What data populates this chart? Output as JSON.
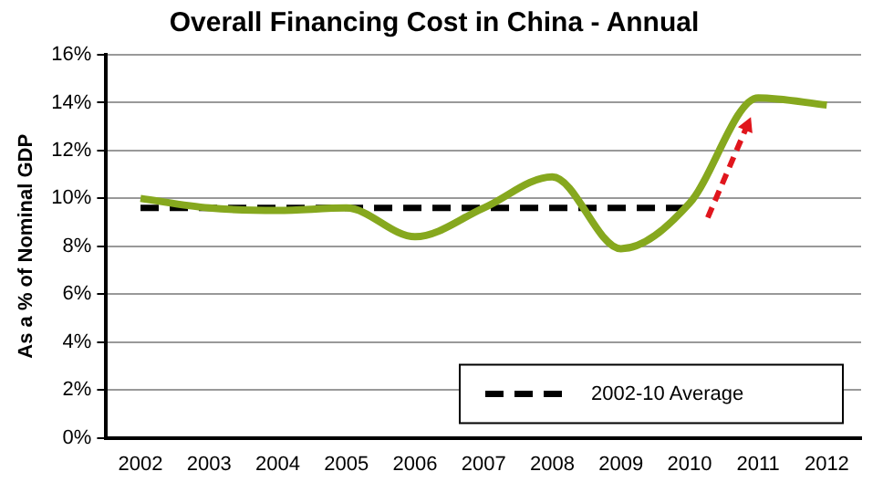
{
  "chart_data": {
    "type": "line",
    "title": "Overall Financing Cost in China - Annual",
    "ylabel": "As a % of Nominal GDP",
    "categories": [
      "2002",
      "2003",
      "2004",
      "2005",
      "2006",
      "2007",
      "2008",
      "2009",
      "2010",
      "2011",
      "2012"
    ],
    "series": [
      {
        "color": "#86a81e",
        "values": [
          10.0,
          9.6,
          9.5,
          9.6,
          8.4,
          9.6,
          10.9,
          7.9,
          9.8,
          14.2,
          13.9
        ]
      },
      {
        "name": "2002-10 Average",
        "color": "#000000",
        "line_style": "dashed",
        "values": [
          9.6,
          9.6,
          9.6,
          9.6,
          9.6,
          9.6,
          9.6,
          9.6,
          9.6,
          null,
          null
        ]
      }
    ],
    "ylim": [
      0,
      16
    ],
    "yticks": [
      {
        "value": 0,
        "label": "0%"
      },
      {
        "value": 2,
        "label": "2%"
      },
      {
        "value": 4,
        "label": "4%"
      },
      {
        "value": 6,
        "label": "6%"
      },
      {
        "value": 8,
        "label": "8%"
      },
      {
        "value": 10,
        "label": "10%"
      },
      {
        "value": 12,
        "label": "12%"
      },
      {
        "value": 14,
        "label": "14%"
      },
      {
        "value": 16,
        "label": "16%"
      }
    ],
    "grid": "y",
    "legend": "bottom right",
    "marker": "none"
  }
}
